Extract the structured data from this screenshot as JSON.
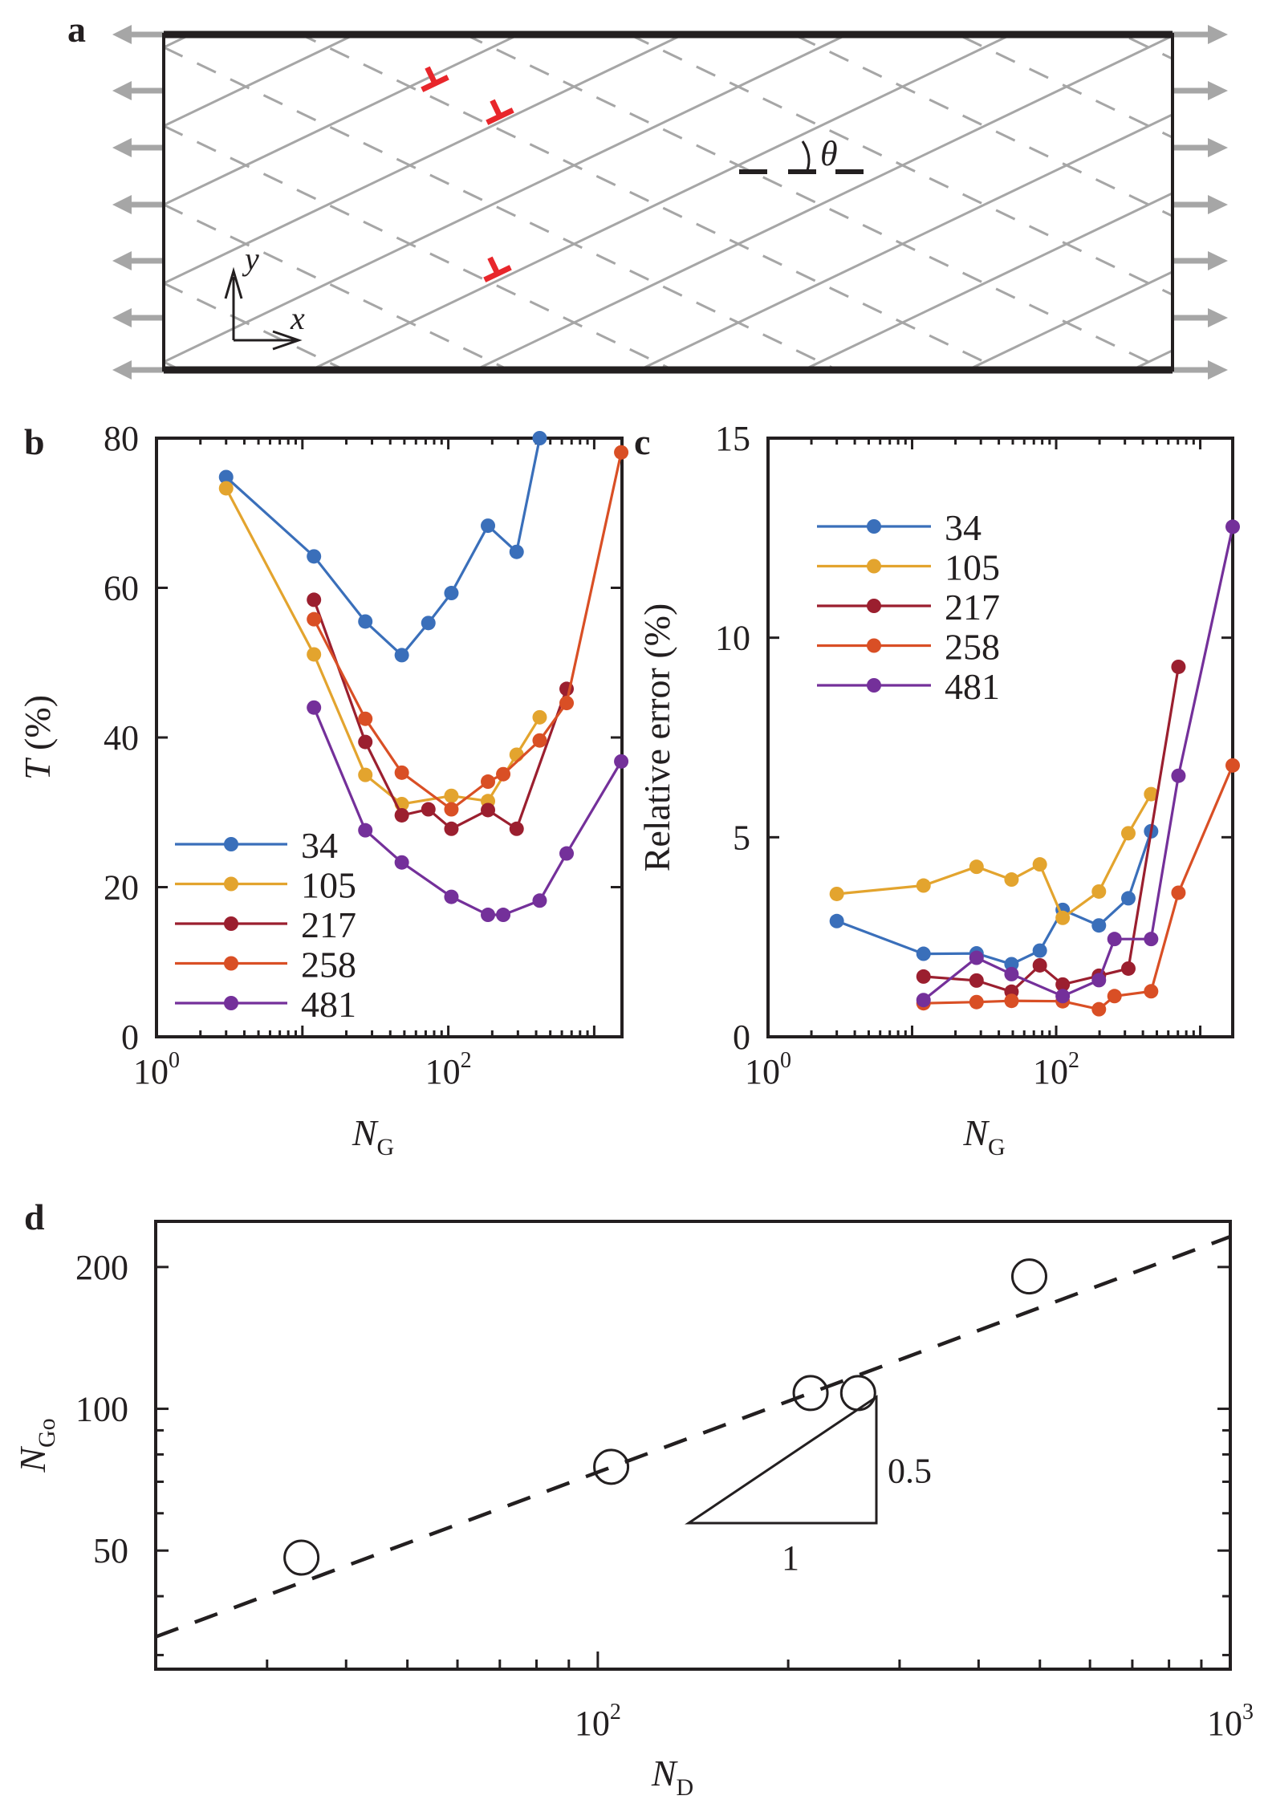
{
  "panel_labels": {
    "a": "a",
    "b": "b",
    "c": "c",
    "d": "d"
  },
  "panel_a": {
    "x_label": "x",
    "y_label": "y",
    "angle_label": "θ",
    "colors": {
      "slip_lines": "#a6a6a6",
      "dislocations": "#e8262b",
      "frame": "#231f20",
      "load_arrows": "#a6a6a6"
    }
  },
  "chart_data": [
    {
      "id": "b",
      "type": "line",
      "xscale": "log",
      "xlim": [
        1,
        1550
      ],
      "ylim": [
        0,
        80
      ],
      "yticks": [
        0,
        20,
        40,
        60,
        80
      ],
      "xtick_labels": [
        {
          "value": 1,
          "base": "10",
          "exp": "0"
        },
        {
          "value": 100,
          "base": "10",
          "exp": "2"
        }
      ],
      "xlabel": {
        "symbol": "N",
        "sub": "G"
      },
      "ylabel": {
        "symbol": "T",
        "unit": " (%)"
      },
      "legend_placement": "bottom-left",
      "grid": false,
      "series": [
        {
          "name": "34",
          "color": "#3a6fba",
          "x": [
            3,
            12,
            27,
            48,
            73,
            105,
            187,
            294,
            423
          ],
          "y": [
            74.8,
            64.2,
            55.5,
            51.0,
            55.3,
            59.3,
            68.3,
            64.8,
            80.0
          ]
        },
        {
          "name": "105",
          "color": "#e3a42e",
          "x": [
            3,
            12,
            27,
            48,
            105,
            187,
            294,
            423
          ],
          "y": [
            73.3,
            51.1,
            35.0,
            31.1,
            32.2,
            31.5,
            37.7,
            42.7
          ]
        },
        {
          "name": "217",
          "color": "#9b1f2f",
          "x": [
            12,
            27,
            48,
            73,
            105,
            187,
            294,
            647
          ],
          "y": [
            58.4,
            39.4,
            29.6,
            30.4,
            27.8,
            30.3,
            27.8,
            46.5
          ]
        },
        {
          "name": "258",
          "color": "#d94f25",
          "x": [
            12,
            27,
            48,
            105,
            187,
            238,
            423,
            647,
            1532
          ],
          "y": [
            55.8,
            42.5,
            35.3,
            30.4,
            34.1,
            35.1,
            39.6,
            44.6,
            78.1
          ]
        },
        {
          "name": "481",
          "color": "#74309a",
          "x": [
            12,
            27,
            48,
            105,
            187,
            238,
            423,
            647,
            1532
          ],
          "y": [
            44.0,
            27.6,
            23.3,
            18.7,
            16.3,
            16.3,
            18.2,
            24.5,
            36.8
          ]
        }
      ]
    },
    {
      "id": "c",
      "type": "line",
      "xscale": "log",
      "xlim": [
        1,
        1680
      ],
      "ylim": [
        0,
        15
      ],
      "yticks": [
        0,
        5,
        10,
        15
      ],
      "xtick_labels": [
        {
          "value": 1,
          "base": "10",
          "exp": "0"
        },
        {
          "value": 100,
          "base": "10",
          "exp": "2"
        }
      ],
      "xlabel": {
        "symbol": "N",
        "sub": "G"
      },
      "ylabel": {
        "symbol": "",
        "unit": "Relative error (%)"
      },
      "legend_placement": "top-left",
      "grid": false,
      "series": [
        {
          "name": "34",
          "color": "#3a6fba",
          "x": [
            3,
            12,
            28,
            49,
            77,
            111,
            198,
            317,
            456
          ],
          "y": [
            2.9,
            2.08,
            2.09,
            1.82,
            2.16,
            3.18,
            2.79,
            3.47,
            5.15
          ]
        },
        {
          "name": "105",
          "color": "#e3a42e",
          "x": [
            3,
            12,
            28,
            49,
            77,
            111,
            198,
            317,
            456
          ],
          "y": [
            3.58,
            3.79,
            4.26,
            3.94,
            4.32,
            2.98,
            3.64,
            5.1,
            6.08
          ]
        },
        {
          "name": "217",
          "color": "#9b1f2f",
          "x": [
            12,
            28,
            49,
            77,
            111,
            198,
            317,
            706
          ],
          "y": [
            1.51,
            1.41,
            1.13,
            1.79,
            1.31,
            1.53,
            1.71,
            9.27
          ]
        },
        {
          "name": "258",
          "color": "#d94f25",
          "x": [
            12,
            28,
            49,
            111,
            198,
            254,
            456,
            706,
            1680
          ],
          "y": [
            0.84,
            0.87,
            0.9,
            0.89,
            0.69,
            1.02,
            1.14,
            3.61,
            6.8
          ]
        },
        {
          "name": "481",
          "color": "#74309a",
          "x": [
            12,
            28,
            49,
            111,
            198,
            254,
            456,
            706,
            1680
          ],
          "y": [
            0.92,
            1.98,
            1.57,
            1.02,
            1.42,
            2.45,
            2.45,
            6.54,
            12.78
          ]
        }
      ]
    },
    {
      "id": "d",
      "type": "scatter",
      "xscale": "log",
      "yscale": "log",
      "xlim": [
        20,
        1000
      ],
      "ylim": [
        28,
        250
      ],
      "yticks": [
        50,
        100,
        200
      ],
      "xtick_labels": [
        {
          "value": 100,
          "base": "10",
          "exp": "2"
        },
        {
          "value": 1000,
          "base": "10",
          "exp": "3"
        }
      ],
      "xlabel": {
        "symbol": "N",
        "sub": "D"
      },
      "ylabel": {
        "symbol": "N",
        "sub": "Go"
      },
      "grid": false,
      "points": {
        "x": [
          34,
          105,
          217,
          258,
          481
        ],
        "y": [
          48.3,
          75.3,
          108,
          108,
          191
        ],
        "marker": "open-circle"
      },
      "fit_line": {
        "style": "dashed",
        "slope": 0.5,
        "x": [
          20,
          1000
        ],
        "y": [
          32.8,
          232
        ]
      },
      "slope_triangle": {
        "rise_label": "0.5",
        "run_label": "1"
      }
    }
  ]
}
